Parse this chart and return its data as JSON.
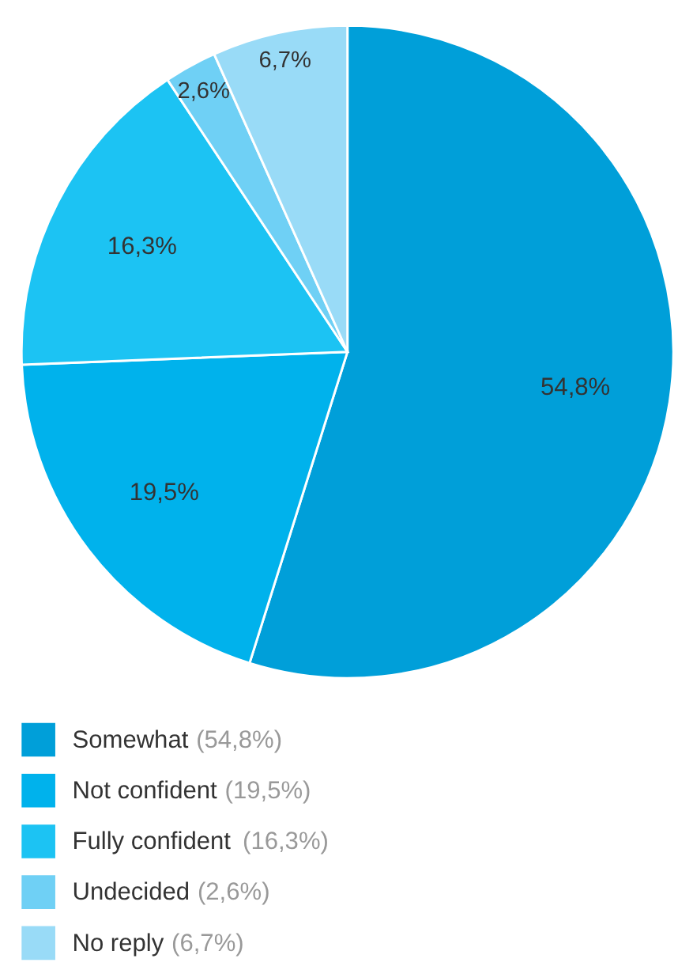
{
  "chart_data": {
    "type": "pie",
    "categories": [
      "Somewhat",
      "Not confident",
      "Fully confident",
      "Undecided",
      "No reply"
    ],
    "values": [
      54.8,
      19.5,
      16.3,
      2.6,
      6.7
    ],
    "value_labels": [
      "54,8%",
      "19,5%",
      "16,3%",
      "2,6%",
      "6,7%"
    ],
    "colors": [
      "#009fd9",
      "#00b2ec",
      "#1cc3f3",
      "#6fd0f5",
      "#99dbf7"
    ],
    "annotations": [
      "(54,8%)",
      "(19,5%)",
      "(16,3%)",
      "(2,6%)",
      "(6,7%)"
    ],
    "legend": "bottom"
  }
}
